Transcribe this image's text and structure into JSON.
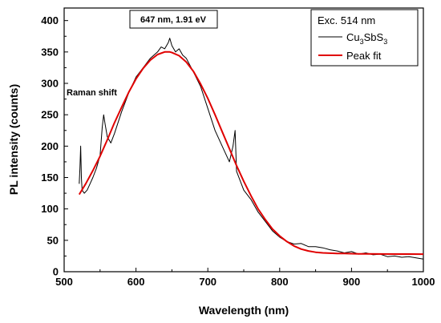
{
  "chart_data": {
    "type": "line",
    "xlabel": "Wavelength (nm)",
    "ylabel": "PL intensity (counts)",
    "xlim": [
      500,
      1000
    ],
    "ylim": [
      0,
      420
    ],
    "x_ticks": [
      500,
      600,
      700,
      800,
      900,
      1000
    ],
    "y_ticks": [
      0,
      50,
      100,
      150,
      200,
      250,
      300,
      350,
      400
    ],
    "grid": false,
    "legend_position": "top-right",
    "legend_title": "Exc. 514 nm",
    "peak_annotation": "647 nm, 1.91 eV",
    "side_annotation": "Raman shift",
    "series": [
      {
        "name": "Cu3SbS3",
        "name_base": "Cu",
        "name_sub1": "3",
        "name_mid": "Sb",
        "name_sub2": "S",
        "name_sub3": "3",
        "color": "#000000",
        "x": [
          521,
          522,
          523,
          524,
          525,
          528,
          532,
          536,
          540,
          545,
          550,
          553,
          555,
          557,
          560,
          565,
          570,
          580,
          590,
          600,
          610,
          620,
          630,
          635,
          640,
          645,
          647,
          650,
          655,
          660,
          665,
          670,
          680,
          690,
          700,
          710,
          720,
          730,
          735,
          738,
          740,
          745,
          750,
          760,
          770,
          780,
          790,
          800,
          810,
          820,
          830,
          840,
          850,
          860,
          870,
          880,
          890,
          900,
          910,
          920,
          930,
          940,
          950,
          960,
          970,
          980,
          990,
          1000
        ],
        "y": [
          140,
          165,
          200,
          150,
          130,
          125,
          130,
          140,
          150,
          165,
          185,
          230,
          250,
          235,
          215,
          205,
          220,
          255,
          285,
          310,
          325,
          340,
          350,
          358,
          355,
          365,
          372,
          360,
          350,
          355,
          345,
          340,
          318,
          295,
          260,
          225,
          200,
          175,
          200,
          225,
          160,
          145,
          130,
          115,
          95,
          80,
          65,
          55,
          48,
          44,
          45,
          40,
          40,
          38,
          35,
          33,
          30,
          32,
          28,
          30,
          27,
          28,
          24,
          25,
          23,
          24,
          22,
          20
        ]
      },
      {
        "name": "Peak fit",
        "color": "#e00000",
        "x": [
          521,
          530,
          540,
          550,
          560,
          570,
          580,
          590,
          600,
          610,
          620,
          630,
          640,
          647,
          650,
          660,
          670,
          680,
          690,
          700,
          710,
          720,
          730,
          740,
          750,
          760,
          770,
          780,
          790,
          800,
          810,
          820,
          830,
          840,
          850,
          860,
          870,
          880,
          890,
          900,
          910,
          920,
          940,
          960,
          980,
          1000
        ],
        "y": [
          123,
          140,
          161,
          184,
          210,
          237,
          262,
          286,
          307,
          324,
          337,
          346,
          350,
          350,
          349,
          344,
          334,
          319,
          299,
          276,
          250,
          223,
          196,
          169,
          144,
          121,
          100,
          83,
          68,
          57,
          48,
          41,
          36,
          33,
          31,
          30,
          29.5,
          29,
          29,
          28.7,
          28.5,
          28.4,
          28.2,
          28.1,
          28.1,
          28.0
        ]
      }
    ]
  }
}
